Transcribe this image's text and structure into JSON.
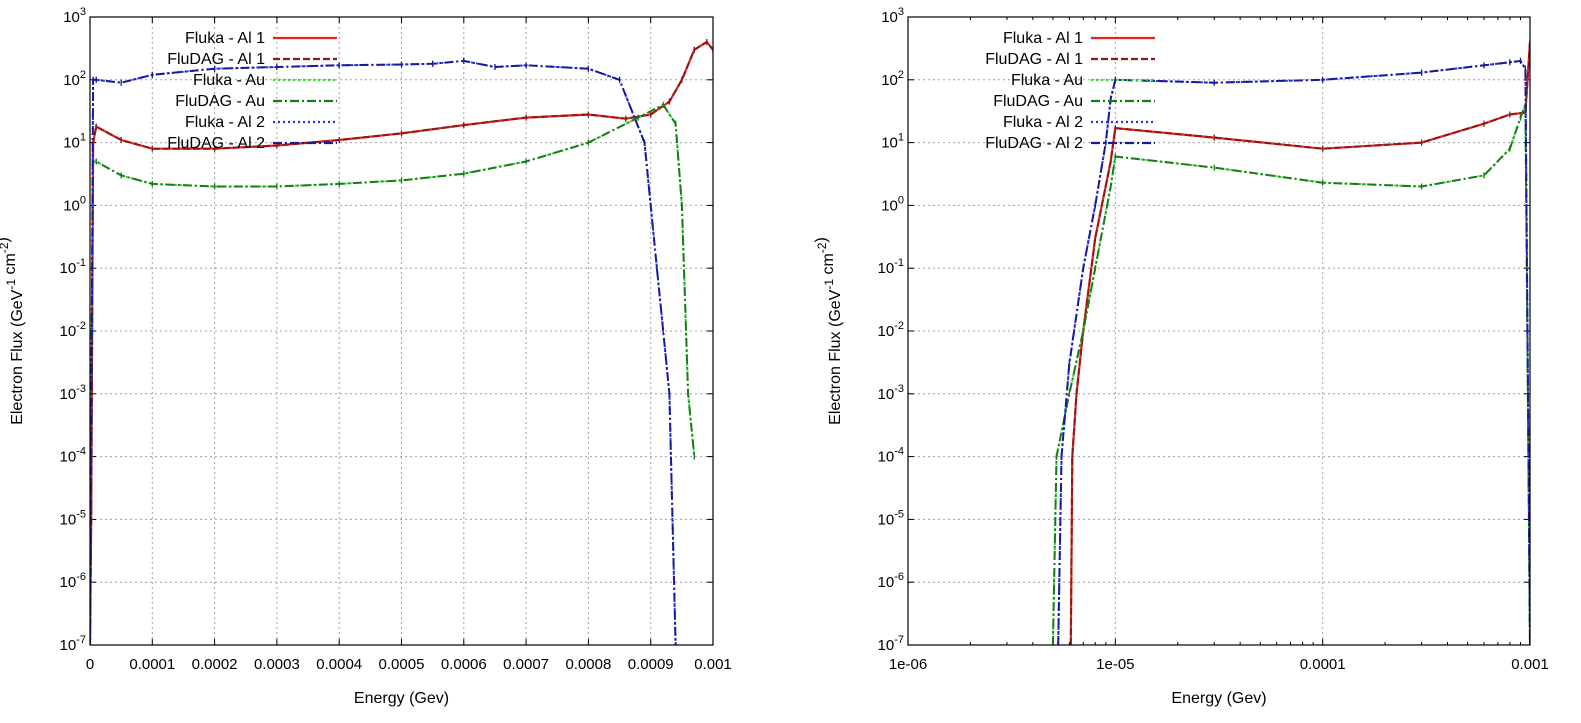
{
  "chart_data": [
    {
      "type": "line",
      "xlabel": "Energy (Gev)",
      "ylabel": "Electron Flux (GeV^-1 cm^-2)",
      "xscale": "linear",
      "yscale": "log",
      "xlim": [
        0,
        0.001
      ],
      "ylim": [
        1e-07,
        1000
      ],
      "grid": true,
      "legend_position": "top-left",
      "xticks": [
        "0",
        "0.0001",
        "0.0002",
        "0.0003",
        "0.0004",
        "0.0005",
        "0.0006",
        "0.0007",
        "0.0008",
        "0.0009",
        "0.001"
      ],
      "series": [
        {
          "name": "Fluka - Al 1",
          "color": "#e8231f",
          "style": "solid",
          "x": [
            0,
            2e-06,
            5e-06,
            1e-05,
            5e-05,
            0.0001,
            0.0002,
            0.0003,
            0.0004,
            0.0005,
            0.0006,
            0.0007,
            0.0008,
            0.00086,
            0.0009,
            0.00093,
            0.00095,
            0.00097,
            0.00099,
            0.001
          ],
          "y": [
            1e-07,
            1e-05,
            10,
            18,
            11,
            8,
            8,
            9,
            11,
            14,
            19,
            25,
            28,
            24,
            28,
            45,
            100,
            300,
            400,
            300
          ]
        },
        {
          "name": "FluDAG - Al 1",
          "color": "#8b1a1a",
          "style": "dashed",
          "x": [
            0,
            2e-06,
            5e-06,
            1e-05,
            5e-05,
            0.0001,
            0.0002,
            0.0003,
            0.0004,
            0.0005,
            0.0006,
            0.0007,
            0.0008,
            0.00086,
            0.0009,
            0.00093,
            0.00095,
            0.00097,
            0.00099,
            0.001
          ],
          "y": [
            1e-07,
            1e-05,
            10,
            18,
            11,
            8,
            8,
            9,
            11,
            14,
            19,
            25,
            28,
            24,
            28,
            45,
            100,
            300,
            400,
            300
          ]
        },
        {
          "name": "Fluka  - Au",
          "color": "#22dd22",
          "style": "dotted",
          "x": [
            0,
            2e-06,
            5e-06,
            1e-05,
            5e-05,
            0.0001,
            0.0002,
            0.0003,
            0.0004,
            0.0005,
            0.0006,
            0.0007,
            0.0008,
            0.00088,
            0.00092,
            0.00094,
            0.00095,
            0.00096,
            0.00097
          ],
          "y": [
            1e-07,
            0.001,
            5,
            5,
            3,
            2.2,
            2,
            2,
            2.2,
            2.5,
            3.2,
            5,
            10,
            25,
            40,
            20,
            1,
            0.001,
            0.0001
          ]
        },
        {
          "name": "FluDAG - Au",
          "color": "#1a7a1a",
          "style": "dashdot",
          "x": [
            0,
            2e-06,
            5e-06,
            1e-05,
            5e-05,
            0.0001,
            0.0002,
            0.0003,
            0.0004,
            0.0005,
            0.0006,
            0.0007,
            0.0008,
            0.00088,
            0.00092,
            0.00094,
            0.00095,
            0.00096,
            0.00097
          ],
          "y": [
            1e-07,
            0.001,
            5,
            5,
            3,
            2.2,
            2,
            2,
            2.2,
            2.5,
            3.2,
            5,
            10,
            25,
            40,
            20,
            1,
            0.001,
            0.0001
          ]
        },
        {
          "name": "Fluka  - Al 2",
          "color": "#2233ee",
          "style": "dotted",
          "x": [
            0,
            2e-06,
            5e-06,
            1e-05,
            5e-05,
            0.0001,
            0.0002,
            0.0003,
            0.0004,
            0.0005,
            0.00055,
            0.0006,
            0.00065,
            0.0007,
            0.0008,
            0.00085,
            0.00089,
            0.00091,
            0.00092,
            0.00093,
            0.00094
          ],
          "y": [
            1e-07,
            0.0001,
            100,
            100,
            90,
            120,
            150,
            160,
            170,
            175,
            180,
            200,
            160,
            170,
            150,
            100,
            10,
            0.1,
            0.01,
            0.001,
            1e-07
          ]
        },
        {
          "name": "FluDAG - Al 2",
          "color": "#1a1a99",
          "style": "dashdot",
          "x": [
            0,
            2e-06,
            5e-06,
            1e-05,
            5e-05,
            0.0001,
            0.0002,
            0.0003,
            0.0004,
            0.0005,
            0.00055,
            0.0006,
            0.00065,
            0.0007,
            0.0008,
            0.00085,
            0.00089,
            0.00091,
            0.00092,
            0.00093,
            0.00094
          ],
          "y": [
            1e-07,
            0.0001,
            100,
            100,
            90,
            120,
            150,
            160,
            170,
            175,
            180,
            200,
            160,
            170,
            150,
            100,
            10,
            0.1,
            0.01,
            0.001,
            1e-07
          ]
        }
      ]
    },
    {
      "type": "line",
      "xlabel": "Energy (Gev)",
      "ylabel": "Electron Flux (GeV^-1 cm^-2)",
      "xscale": "log",
      "yscale": "log",
      "xlim": [
        1e-06,
        0.001
      ],
      "ylim": [
        1e-07,
        1000
      ],
      "grid": true,
      "legend_position": "top-left",
      "xticks": [
        "1e-06",
        "1e-05",
        "0.0001",
        "0.001"
      ],
      "series": [
        {
          "name": "Fluka - Al 1",
          "color": "#e8231f",
          "style": "solid",
          "x": [
            6.1e-06,
            6.2e-06,
            6.5e-06,
            7e-06,
            8e-06,
            9.5e-06,
            1e-05,
            3e-05,
            0.0001,
            0.0003,
            0.0006,
            0.0008,
            0.00095,
            0.001
          ],
          "y": [
            1e-07,
            0.0001,
            0.001,
            0.01,
            0.3,
            5,
            17,
            12,
            8,
            10,
            20,
            28,
            30,
            400
          ]
        },
        {
          "name": "FluDAG - Al 1",
          "color": "#8b1a1a",
          "style": "dashed",
          "x": [
            6.1e-06,
            6.2e-06,
            6.5e-06,
            7e-06,
            8e-06,
            9.5e-06,
            1e-05,
            3e-05,
            0.0001,
            0.0003,
            0.0006,
            0.0008,
            0.00095,
            0.001
          ],
          "y": [
            1e-07,
            0.0001,
            0.001,
            0.01,
            0.3,
            5,
            17,
            12,
            8,
            10,
            20,
            28,
            30,
            400
          ]
        },
        {
          "name": "Fluka  - Au",
          "color": "#22dd22",
          "style": "dotted",
          "x": [
            5e-06,
            5.2e-06,
            6e-06,
            7e-06,
            8e-06,
            9.5e-06,
            1e-05,
            3e-05,
            0.0001,
            0.0003,
            0.0006,
            0.0008,
            0.0009,
            0.00095,
            0.001
          ],
          "y": [
            1e-07,
            0.0001,
            0.001,
            0.01,
            0.1,
            2,
            6,
            4,
            2.3,
            2,
            3,
            8,
            25,
            40,
            1e-07
          ]
        },
        {
          "name": "FluDAG - Au",
          "color": "#1a7a1a",
          "style": "dashdot",
          "x": [
            5e-06,
            5.2e-06,
            6e-06,
            7e-06,
            8e-06,
            9.5e-06,
            1e-05,
            3e-05,
            0.0001,
            0.0003,
            0.0006,
            0.0008,
            0.0009,
            0.00095,
            0.001
          ],
          "y": [
            1e-07,
            0.0001,
            0.001,
            0.01,
            0.1,
            2,
            6,
            4,
            2.3,
            2,
            3,
            8,
            25,
            40,
            1e-07
          ]
        },
        {
          "name": "Fluka  - Al 2",
          "color": "#2233ee",
          "style": "dotted",
          "x": [
            5.3e-06,
            5.5e-06,
            6e-06,
            7e-06,
            8e-06,
            9e-06,
            9.5e-06,
            1e-05,
            3e-05,
            0.0001,
            0.0003,
            0.0006,
            0.0008,
            0.0009,
            0.00095,
            0.001
          ],
          "y": [
            1e-07,
            0.0001,
            0.003,
            0.1,
            1,
            10,
            50,
            100,
            90,
            100,
            130,
            170,
            190,
            200,
            150,
            1e-07
          ]
        },
        {
          "name": "FluDAG - Al 2",
          "color": "#1a1a99",
          "style": "dashdot",
          "x": [
            5.3e-06,
            5.5e-06,
            6e-06,
            7e-06,
            8e-06,
            9e-06,
            9.5e-06,
            1e-05,
            3e-05,
            0.0001,
            0.0003,
            0.0006,
            0.0008,
            0.0009,
            0.00095,
            0.001
          ],
          "y": [
            1e-07,
            0.0001,
            0.003,
            0.1,
            1,
            10,
            50,
            100,
            90,
            100,
            130,
            170,
            190,
            200,
            150,
            1e-07
          ]
        }
      ]
    }
  ]
}
